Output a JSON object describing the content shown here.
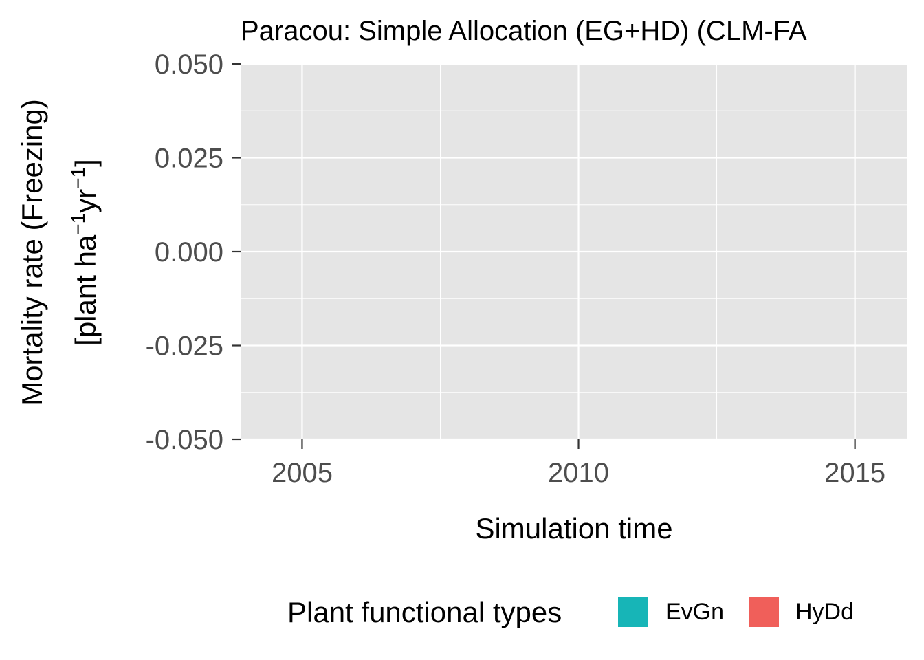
{
  "chart_data": {
    "type": "line",
    "title": "Paracou: Simple Allocation (EG+HD) (CLM-FA",
    "xlabel": "Simulation time",
    "ylabel_line1": "Mortality rate (Freezing)",
    "ylabel_line2": {
      "prefix": "[plant ha",
      "sup1": "−1",
      "middle": "yr",
      "sup2": "−1",
      "suffix": "]"
    },
    "xlim": [
      2003.9,
      2015.95
    ],
    "ylim": [
      -0.05,
      0.05
    ],
    "x_ticks": [
      2005,
      2010,
      2015
    ],
    "x_tick_labels": [
      "2005",
      "2010",
      "2015"
    ],
    "y_ticks": [
      -0.05,
      -0.025,
      0.0,
      0.025,
      0.05
    ],
    "y_tick_labels": [
      "-0.050",
      "-0.025",
      "0.000",
      "0.025",
      "0.050"
    ],
    "grid": true,
    "panel_background": "#e5e5e5",
    "grid_color": "#ffffff",
    "series": [
      {
        "name": "EvGn",
        "color": "#17b5b7",
        "values": []
      },
      {
        "name": "HyDd",
        "color": "#f05f5a",
        "values": []
      }
    ],
    "legend": {
      "title": "Plant functional types",
      "position": "bottom"
    }
  }
}
